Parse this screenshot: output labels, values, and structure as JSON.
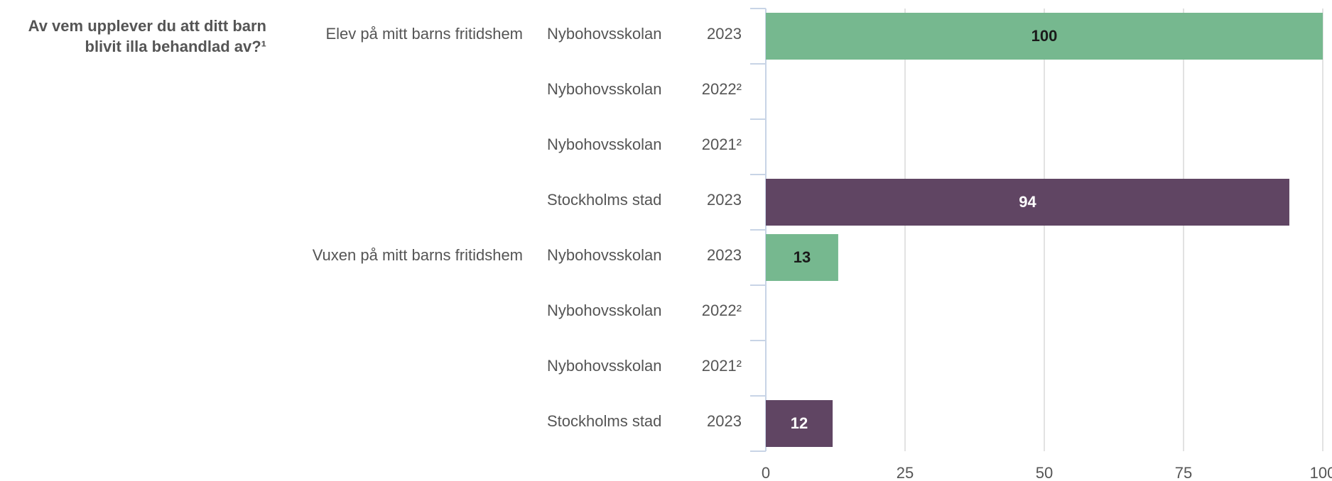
{
  "chart_data": {
    "type": "bar",
    "orientation": "horizontal",
    "title": "Av vem upplever du att ditt barn blivit illa behandlad av?¹",
    "rows": [
      {
        "group": "Elev på mitt barns fritidshem",
        "school": "Nybohovsskolan",
        "year": "2023",
        "value": 100
      },
      {
        "group": null,
        "school": "Nybohovsskolan",
        "year": "2022²",
        "value": null
      },
      {
        "group": null,
        "school": "Nybohovsskolan",
        "year": "2021²",
        "value": null
      },
      {
        "group": null,
        "school": "Stockholms stad",
        "year": "2023",
        "value": 94
      },
      {
        "group": "Vuxen på mitt barns fritidshem",
        "school": "Nybohovsskolan",
        "year": "2023",
        "value": 13
      },
      {
        "group": null,
        "school": "Nybohovsskolan",
        "year": "2022²",
        "value": null
      },
      {
        "group": null,
        "school": "Nybohovsskolan",
        "year": "2021²",
        "value": null
      },
      {
        "group": null,
        "school": "Stockholms stad",
        "year": "2023",
        "value": 12
      }
    ],
    "colors": {
      "Nybohovsskolan": "#76b88f",
      "Stockholms stad": "#604563"
    },
    "label_colors": {
      "Nybohovsskolan": "#1a1a1a",
      "Stockholms stad": "#ffffff"
    },
    "xlim": [
      0,
      100
    ],
    "xticks": [
      0,
      25,
      50,
      75,
      100
    ],
    "grid": true
  }
}
